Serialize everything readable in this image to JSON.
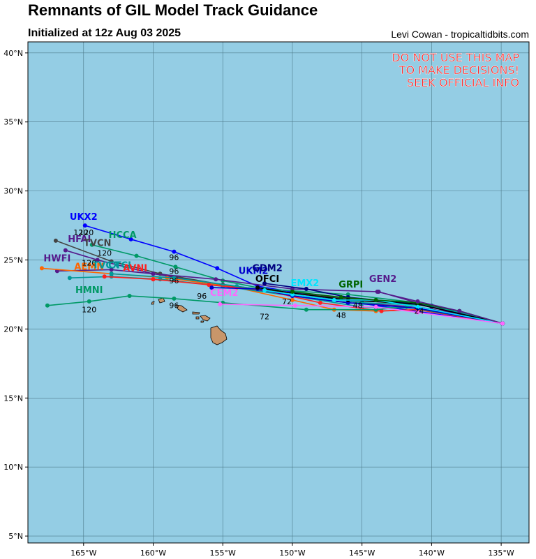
{
  "header": {
    "title": "Remnants of GIL Model Track Guidance",
    "subtitle": "Initialized at 12z Aug 03 2025",
    "credit": "Levi Cowan - tropicaltidbits.com"
  },
  "warning": {
    "line1": "DO NOT USE THIS MAP",
    "line2": "TO MAKE DECISIONS!",
    "line3": "SEEK OFFICIAL INFO",
    "color": "#ff2020"
  },
  "map": {
    "lon_range": [
      -169,
      -133
    ],
    "lat_range": [
      4.5,
      40.8
    ],
    "lat_ticks": [
      {
        "value": 40,
        "label": "40°N"
      },
      {
        "value": 35,
        "label": "35°N"
      },
      {
        "value": 30,
        "label": "30°N"
      },
      {
        "value": 25,
        "label": "25°N"
      },
      {
        "value": 20,
        "label": "20°N"
      },
      {
        "value": 15,
        "label": "15°N"
      },
      {
        "value": 10,
        "label": "10°N"
      },
      {
        "value": 5,
        "label": "5°N"
      }
    ],
    "lon_ticks": [
      {
        "value": -165,
        "label": "165°W"
      },
      {
        "value": -160,
        "label": "160°W"
      },
      {
        "value": -155,
        "label": "155°W"
      },
      {
        "value": -150,
        "label": "150°W"
      },
      {
        "value": -145,
        "label": "145°W"
      },
      {
        "value": -140,
        "label": "140°W"
      },
      {
        "value": -135,
        "label": "135°W"
      }
    ],
    "ocean_color": "#94cde4",
    "land_color": "#c8966a",
    "grid_color": "#4d7a8a"
  },
  "chart_data": {
    "type": "track-map",
    "series": [
      {
        "name": "UKX2",
        "color": "#0000ff",
        "labelAt": [
          -165,
          27.9
        ],
        "points": [
          [
            -134.9,
            20.4
          ],
          [
            -144,
            21.7
          ],
          [
            -152.5,
            23.1
          ],
          [
            -155.4,
            24.4
          ],
          [
            -158.5,
            25.6
          ],
          [
            -161.6,
            26.5
          ],
          [
            -164.9,
            27.5
          ]
        ],
        "hours": [
          {
            "t": "120",
            "at": [
              -164.8,
              26.8
            ]
          }
        ]
      },
      {
        "name": "HCCA",
        "color": "#009966",
        "labelAt": [
          -162.2,
          26.6
        ],
        "points": [
          [
            -134.9,
            20.4
          ],
          [
            -138,
            21.3
          ],
          [
            -141,
            21.9
          ],
          [
            -146,
            22.5
          ],
          [
            -152,
            22.9
          ],
          [
            -155,
            23.5
          ],
          [
            -158.4,
            24.5
          ],
          [
            -161.2,
            25.3
          ],
          [
            -164.4,
            26.1
          ]
        ],
        "hours": [
          {
            "t": "96",
            "at": [
              -158.5,
              25
            ]
          },
          {
            "t": "120",
            "at": [
              -163.5,
              25.3
            ]
          }
        ]
      },
      {
        "name": "HFAI",
        "color": "#551a8b",
        "labelAt": [
          -165.3,
          26.3
        ],
        "points": [
          [
            -134.9,
            20.4
          ],
          [
            -138,
            21.1
          ],
          [
            -141,
            21.6
          ],
          [
            -146,
            21.9
          ],
          [
            -150,
            22.4
          ],
          [
            -155,
            23.2
          ],
          [
            -160,
            24
          ],
          [
            -164,
            25
          ],
          [
            -166.3,
            25.7
          ]
        ],
        "hours": [
          {
            "t": "120",
            "at": [
              -165.2,
              26.8
            ]
          }
        ]
      },
      {
        "name": "TVCN",
        "color": "#444444",
        "labelAt": [
          -164,
          26
        ],
        "points": [
          [
            -134.9,
            20.4
          ],
          [
            -138,
            21.2
          ],
          [
            -141,
            21.8
          ],
          [
            -146,
            22.2
          ],
          [
            -150,
            22.6
          ],
          [
            -155,
            23.2
          ],
          [
            -159.5,
            24
          ],
          [
            -163,
            24.9
          ],
          [
            -167,
            26.4
          ]
        ],
        "hours": []
      },
      {
        "name": "HWFI",
        "color": "#551a8b",
        "labelAt": [
          -166.9,
          24.9
        ],
        "points": [
          [
            -134.9,
            20.4
          ],
          [
            -140,
            21.6
          ],
          [
            -143.8,
            22.7
          ],
          [
            -150,
            22.9
          ],
          [
            -155.5,
            23.6
          ],
          [
            -160,
            24
          ],
          [
            -163,
            24.3
          ],
          [
            -166.9,
            24.2
          ]
        ],
        "hours": [
          {
            "t": "96",
            "at": [
              -158.5,
              24
            ]
          }
        ]
      },
      {
        "name": "AEMN",
        "color": "#ff6600",
        "labelAt": [
          -164.6,
          24.3
        ],
        "points": [
          [
            -134.9,
            20.4
          ],
          [
            -141,
            21.4
          ],
          [
            -144,
            21.3
          ],
          [
            -147,
            21.4
          ],
          [
            -150,
            22.1
          ],
          [
            -154,
            23
          ],
          [
            -159,
            23.7
          ],
          [
            -163,
            24
          ],
          [
            -168,
            24.4
          ]
        ],
        "hours": []
      },
      {
        "name": "TVCX",
        "color": "#009999",
        "labelAt": [
          -163.4,
          24.4
        ],
        "points": [
          [
            -134.9,
            20.4
          ],
          [
            -140,
            21.7
          ],
          [
            -145,
            21.9
          ],
          [
            -150,
            22.5
          ],
          [
            -154,
            23.1
          ],
          [
            -158.5,
            23.7
          ],
          [
            -163,
            24
          ]
        ],
        "hours": [
          {
            "t": "120",
            "at": [
              -164.6,
              24.6
            ]
          }
        ]
      },
      {
        "name": "CTCI",
        "color": "#009999",
        "labelAt": [
          -162.4,
          24.4
        ],
        "points": [
          [
            -134.9,
            20.4
          ],
          [
            -141,
            21.5
          ],
          [
            -145,
            21.6
          ],
          [
            -150,
            22.4
          ],
          [
            -155,
            23.1
          ],
          [
            -159.5,
            23.6
          ],
          [
            -163,
            23.8
          ],
          [
            -166,
            23.7
          ]
        ],
        "hours": []
      },
      {
        "name": "AVNI",
        "color": "#ff2020",
        "labelAt": [
          -161.3,
          24.2
        ],
        "points": [
          [
            -134.9,
            20.4
          ],
          [
            -141,
            21.4
          ],
          [
            -143.6,
            21.3
          ],
          [
            -148,
            21.9
          ],
          [
            -152,
            22.8
          ],
          [
            -156,
            23.2
          ],
          [
            -160,
            23.6
          ],
          [
            -163.5,
            23.8
          ]
        ],
        "hours": [
          {
            "t": "96",
            "at": [
              -158.5,
              23.3
            ]
          }
        ]
      },
      {
        "name": "HMNI",
        "color": "#009966",
        "labelAt": [
          -164.6,
          22.6
        ],
        "points": [
          [
            -134.9,
            20.4
          ],
          [
            -141.8,
            21.6
          ],
          [
            -144,
            21.4
          ],
          [
            -149,
            21.4
          ],
          [
            -155,
            21.9
          ],
          [
            -158.5,
            22.2
          ],
          [
            -161.7,
            22.4
          ],
          [
            -164.6,
            22
          ],
          [
            -167.6,
            21.7
          ]
        ],
        "hours": [
          {
            "t": "120",
            "at": [
              -164.6,
              21.2
            ]
          },
          {
            "t": "96",
            "at": [
              -158.5,
              21.5
            ]
          }
        ]
      },
      {
        "name": "UKM2",
        "color": "#0000cc",
        "labelAt": [
          -152.8,
          24
        ],
        "points": [
          [
            -134.9,
            20.4
          ],
          [
            -141,
            21.5
          ],
          [
            -146,
            21.9
          ],
          [
            -150,
            22.4
          ],
          [
            -152.5,
            22.9
          ],
          [
            -155.8,
            23
          ]
        ],
        "hours": []
      },
      {
        "name": "GDM2",
        "color": "#000080",
        "labelAt": [
          -151.8,
          24.2
        ],
        "points": [
          [
            -134.9,
            20.4
          ],
          [
            -141,
            21.8
          ],
          [
            -146,
            22.3
          ],
          [
            -149,
            22.9
          ],
          [
            -152,
            23.3
          ]
        ],
        "hours": []
      },
      {
        "name": "OFCI",
        "color": "#000000",
        "labelAt": [
          -151.8,
          23.4
        ],
        "points": [
          [
            -134.9,
            20.4
          ],
          [
            -141,
            21.8
          ],
          [
            -146,
            22.1
          ],
          [
            -150,
            22.6
          ],
          [
            -152.5,
            23
          ]
        ],
        "hours": []
      },
      {
        "name": "EMX2",
        "color": "#00e5ff",
        "labelAt": [
          -149.1,
          23.1
        ],
        "points": [
          [
            -134.9,
            20.4
          ],
          [
            -141,
            21.6
          ],
          [
            -144,
            22.1
          ],
          [
            -147,
            22.1
          ],
          [
            -150,
            22.5
          ],
          [
            -152,
            22.8
          ]
        ],
        "hours": [
          {
            "t": "72",
            "at": [
              -150.4,
              21.8
            ]
          }
        ]
      },
      {
        "name": "GRPI",
        "color": "#006400",
        "labelAt": [
          -145.8,
          23
        ],
        "points": [
          [
            -134.9,
            20.4
          ],
          [
            -138,
            21.3
          ],
          [
            -141,
            21.9
          ],
          [
            -144,
            22.1
          ],
          [
            -146.5,
            22.3
          ],
          [
            -150,
            22.7
          ]
        ],
        "hours": [
          {
            "t": "48",
            "at": [
              -145.3,
              21.5
            ]
          }
        ]
      },
      {
        "name": "GEN2",
        "color": "#551a8b",
        "labelAt": [
          -143.5,
          23.4
        ],
        "points": [
          [
            -134.9,
            20.4
          ],
          [
            -138,
            21.3
          ],
          [
            -141,
            22
          ],
          [
            -143.9,
            22.7
          ]
        ],
        "hours": [
          {
            "t": "24",
            "at": [
              -140.9,
              21.1
            ]
          }
        ]
      },
      {
        "name": "CEM2",
        "color": "#ff66ff",
        "labelAt": [
          -154.9,
          22.4
        ],
        "points": [
          [
            -134.9,
            20.4
          ],
          [
            -141,
            21.2
          ],
          [
            -144,
            21.6
          ],
          [
            -149.8,
            21.7
          ],
          [
            -155.2,
            21.8
          ]
        ],
        "hours": [
          {
            "t": "96",
            "at": [
              -156.5,
              22.2
            ]
          },
          {
            "t": "72",
            "at": [
              -152,
              20.7
            ]
          },
          {
            "t": "48",
            "at": [
              -146.5,
              20.8
            ]
          }
        ]
      }
    ]
  }
}
